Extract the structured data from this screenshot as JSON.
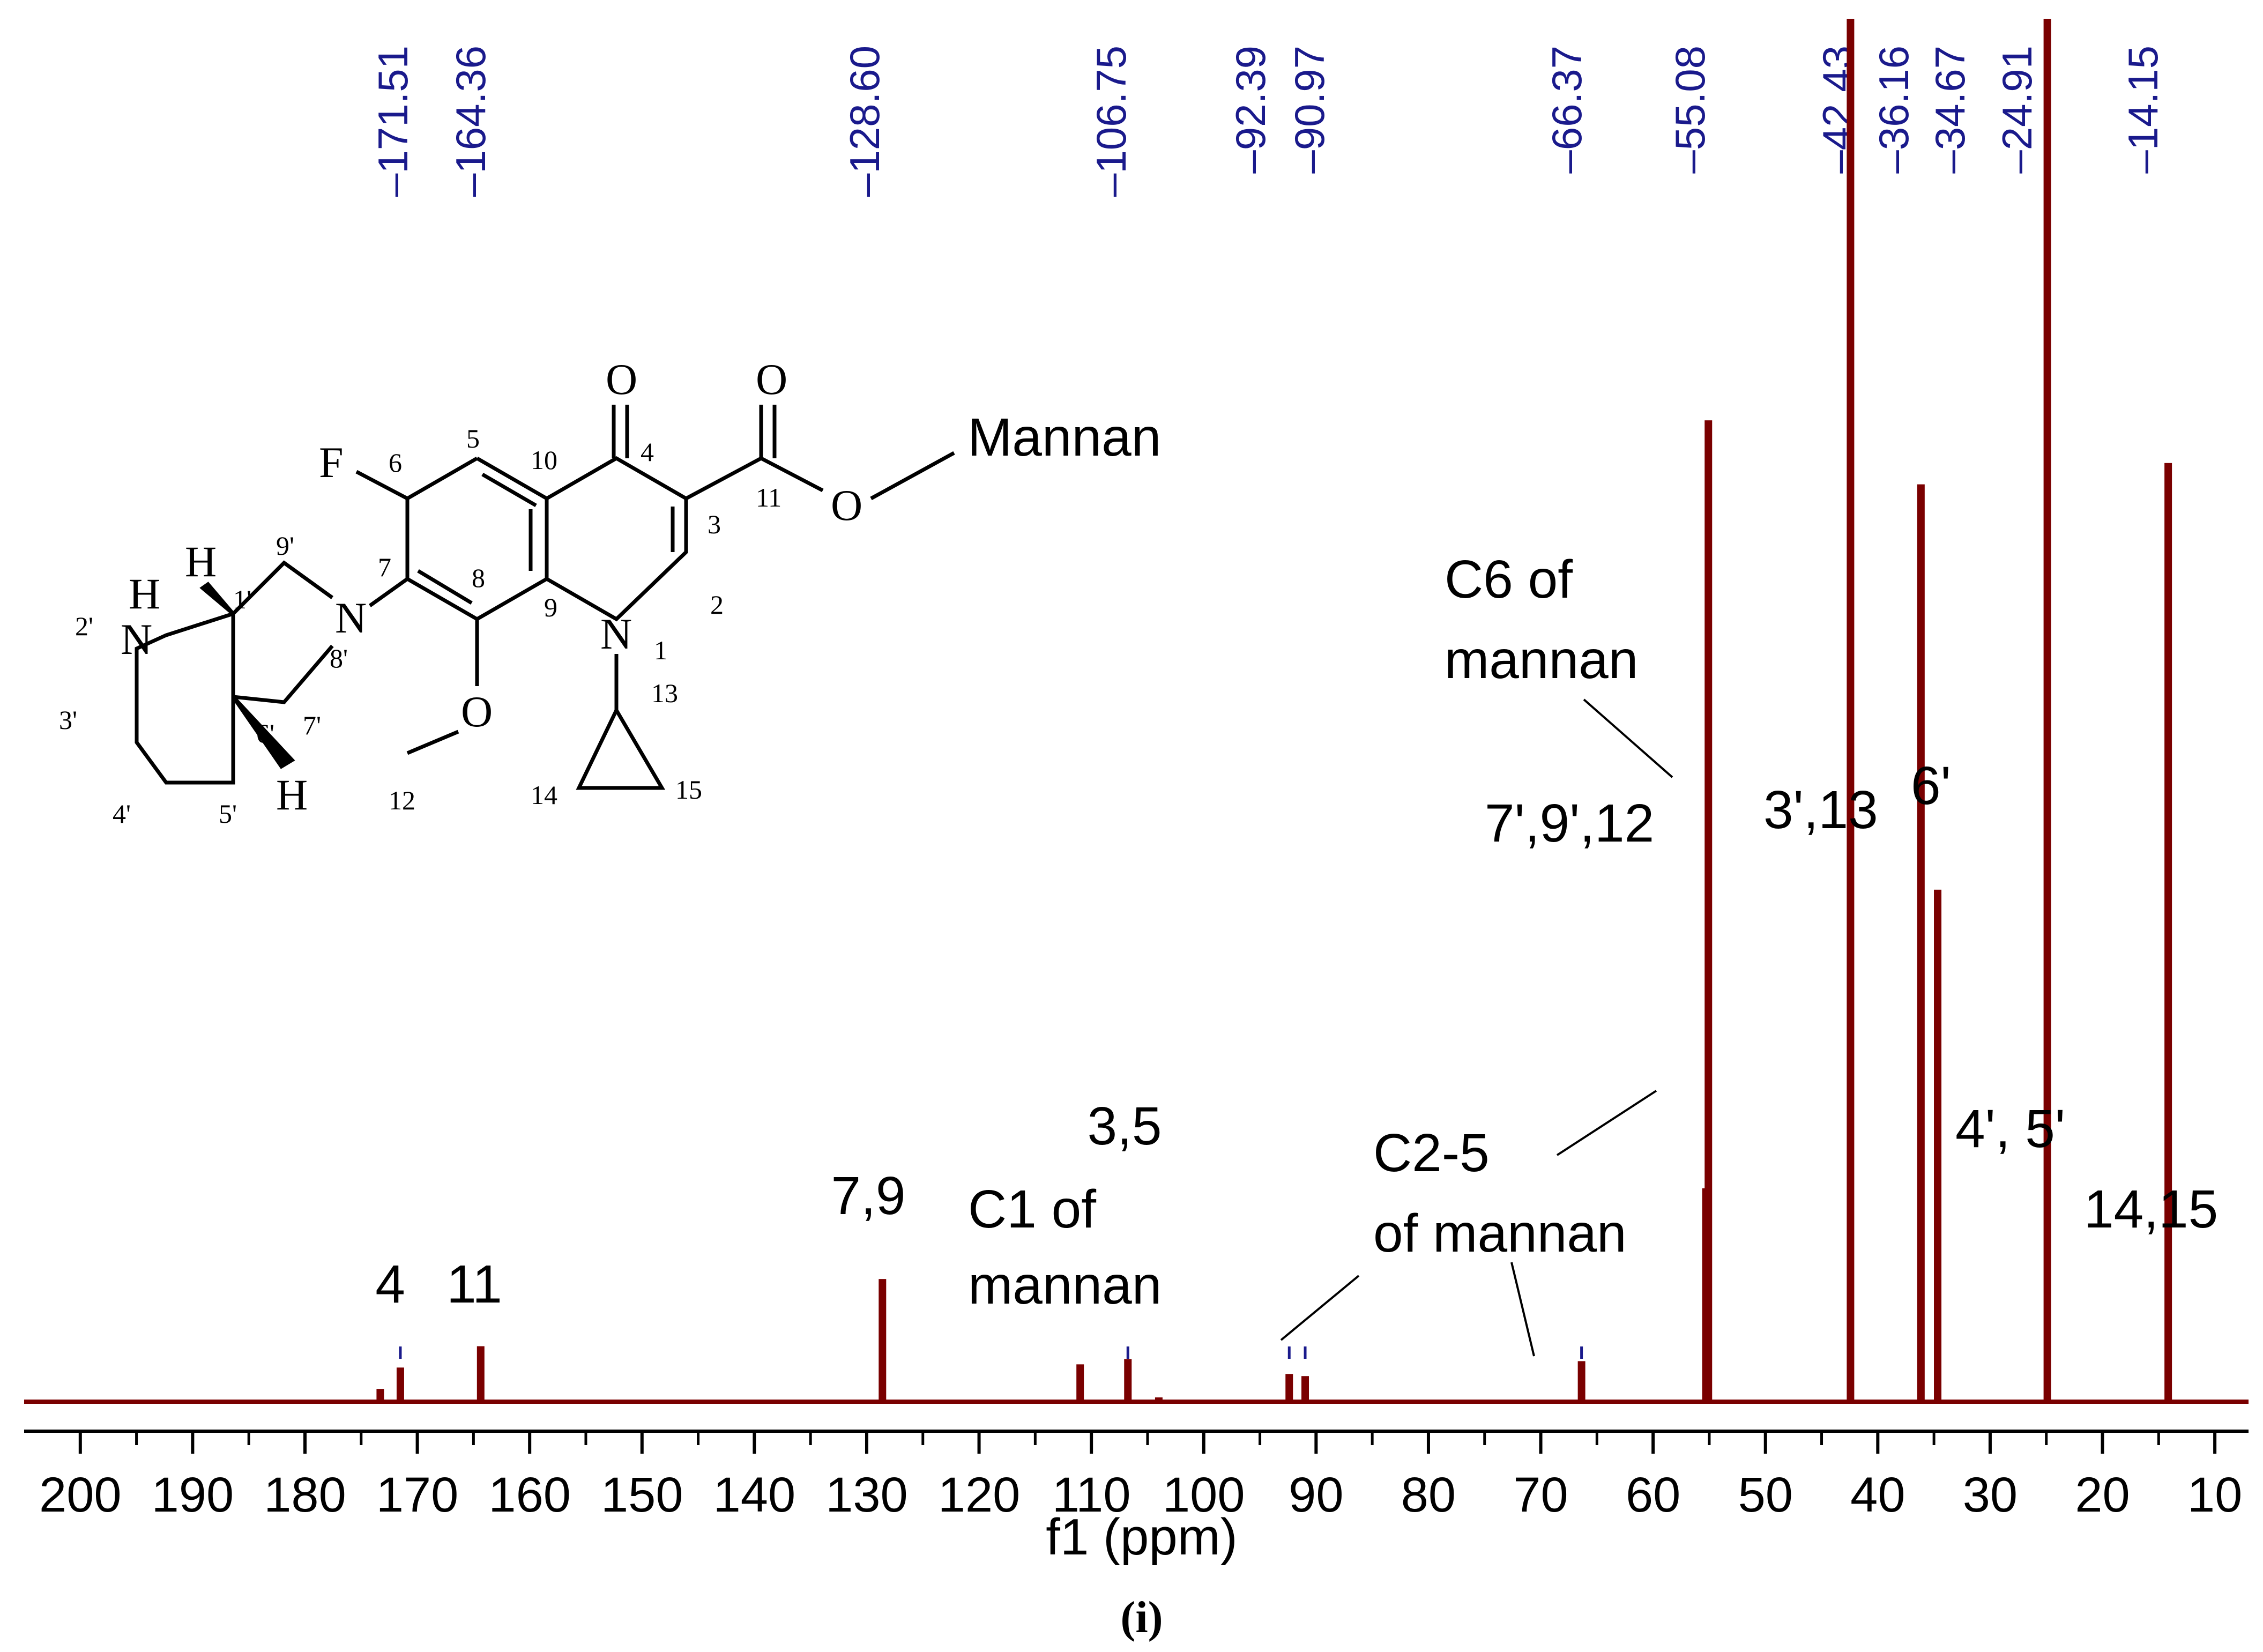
{
  "colors": {
    "spectrum": "#7a0000",
    "peak_label": "#1a1a8c",
    "marker": "#1a1a8c"
  },
  "chart_data": {
    "type": "line",
    "title": "",
    "xlabel": "f1 (ppm)",
    "ylabel": "",
    "xlim": [
      205,
      7
    ],
    "reversed_x": true,
    "ticks": [
      200,
      190,
      180,
      170,
      160,
      150,
      140,
      130,
      120,
      110,
      100,
      90,
      80,
      70,
      60,
      50,
      40,
      30,
      20,
      10
    ],
    "peak_labels": [
      "171.51",
      "164.36",
      "128.60",
      "106.75",
      "92.39",
      "90.97",
      "66.37",
      "55.08",
      "42.43",
      "36.16",
      "34.67",
      "24.91",
      "14.15"
    ],
    "peaks": [
      {
        "ppm": 173.3,
        "height": 0.012
      },
      {
        "ppm": 171.51,
        "height": 0.032
      },
      {
        "ppm": 164.36,
        "height": 0.052
      },
      {
        "ppm": 128.6,
        "height": 0.115
      },
      {
        "ppm": 111.0,
        "height": 0.035
      },
      {
        "ppm": 106.75,
        "height": 0.04
      },
      {
        "ppm": 104.0,
        "height": 0.004
      },
      {
        "ppm": 92.39,
        "height": 0.026
      },
      {
        "ppm": 90.97,
        "height": 0.024
      },
      {
        "ppm": 66.37,
        "height": 0.038
      },
      {
        "ppm": 55.3,
        "height": 0.2
      },
      {
        "ppm": 55.08,
        "height": 0.92
      },
      {
        "ppm": 42.43,
        "height": 1.3
      },
      {
        "ppm": 36.16,
        "height": 0.86
      },
      {
        "ppm": 34.67,
        "height": 0.48
      },
      {
        "ppm": 24.91,
        "height": 1.3
      },
      {
        "ppm": 14.15,
        "height": 0.88
      }
    ],
    "assignments": [
      {
        "text": "4"
      },
      {
        "text": "11"
      },
      {
        "text": "7,9"
      },
      {
        "text": "3,5"
      },
      {
        "text": "C1 of"
      },
      {
        "text": "mannan"
      },
      {
        "text": "C2-5"
      },
      {
        "text": "of mannan"
      },
      {
        "text": "C6 of"
      },
      {
        "text": "mannan"
      },
      {
        "text": "7',9',12"
      },
      {
        "text": "3',13"
      },
      {
        "text": "6'"
      },
      {
        "text": "4', 5'"
      },
      {
        "text": "14,15"
      }
    ]
  },
  "structure": {
    "substituent": "Mannan",
    "atoms": {
      "F": "F",
      "N": "N",
      "O": "O",
      "H": "H"
    },
    "numbers": [
      "1",
      "2",
      "3",
      "4",
      "5",
      "6",
      "7",
      "8",
      "9",
      "10",
      "11",
      "12",
      "13",
      "14",
      "15",
      "1'",
      "2'",
      "3'",
      "4'",
      "5'",
      "6'",
      "7'",
      "8'",
      "9'"
    ]
  },
  "caption": "(i)"
}
